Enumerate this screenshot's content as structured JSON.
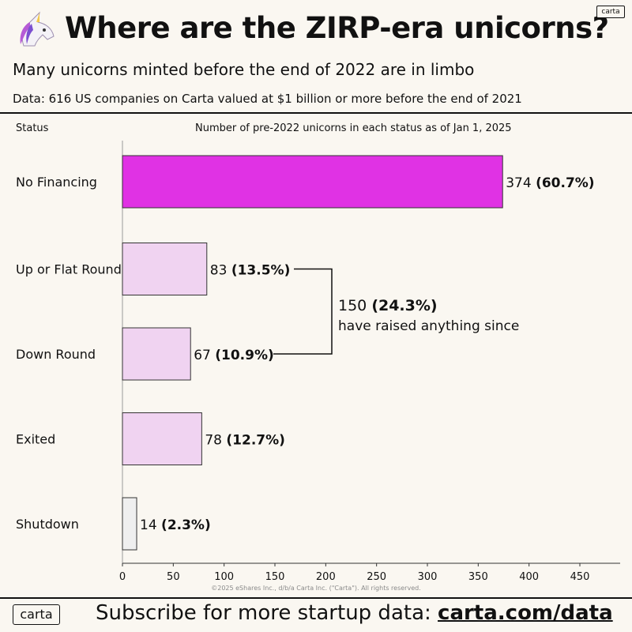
{
  "header": {
    "title": "Where are the ZIRP-era unicorns?",
    "subtitle": "Many unicorns minted before the end of 2022 are in limbo",
    "data_note": "Data: 616 US companies on Carta valued at $1 billion or more before the end of 2021",
    "brand_badge": "carta",
    "emoji_icon": "unicorn-icon"
  },
  "chart_data": {
    "type": "bar",
    "orientation": "horizontal",
    "category_header": "Status",
    "xlabel": "Number of pre-2022 unicorns in each status as of Jan 1, 2025",
    "categories": [
      "No Financing",
      "Up or Flat Round",
      "Down Round",
      "Exited",
      "Shutdown"
    ],
    "values": [
      374,
      83,
      67,
      78,
      14
    ],
    "value_labels": [
      "374",
      "83",
      "67",
      "78",
      "14"
    ],
    "percent_labels": [
      "(60.7%)",
      "(13.5%)",
      "(10.9%)",
      "(12.7%)",
      "(2.3%)"
    ],
    "bar_colors": [
      "#e032e4",
      "#f0d3f1",
      "#f0d3f1",
      "#f0d3f1",
      "#efefef"
    ],
    "xlim": [
      0,
      450
    ],
    "xticks": [
      0,
      50,
      100,
      150,
      200,
      250,
      300,
      350,
      400,
      450
    ],
    "grid": false,
    "annotation": {
      "total": "150",
      "total_percent": "(24.3%)",
      "text": "have raised anything since",
      "applies_to": [
        "Up or Flat Round",
        "Down Round"
      ]
    }
  },
  "footer": {
    "copyright": "©2025 eShares Inc., d/b/a Carta Inc. (\"Carta\"). All rights reserved.",
    "brand_badge": "carta",
    "cta_text": "Subscribe for more startup data: ",
    "cta_link": "carta.com/data"
  }
}
